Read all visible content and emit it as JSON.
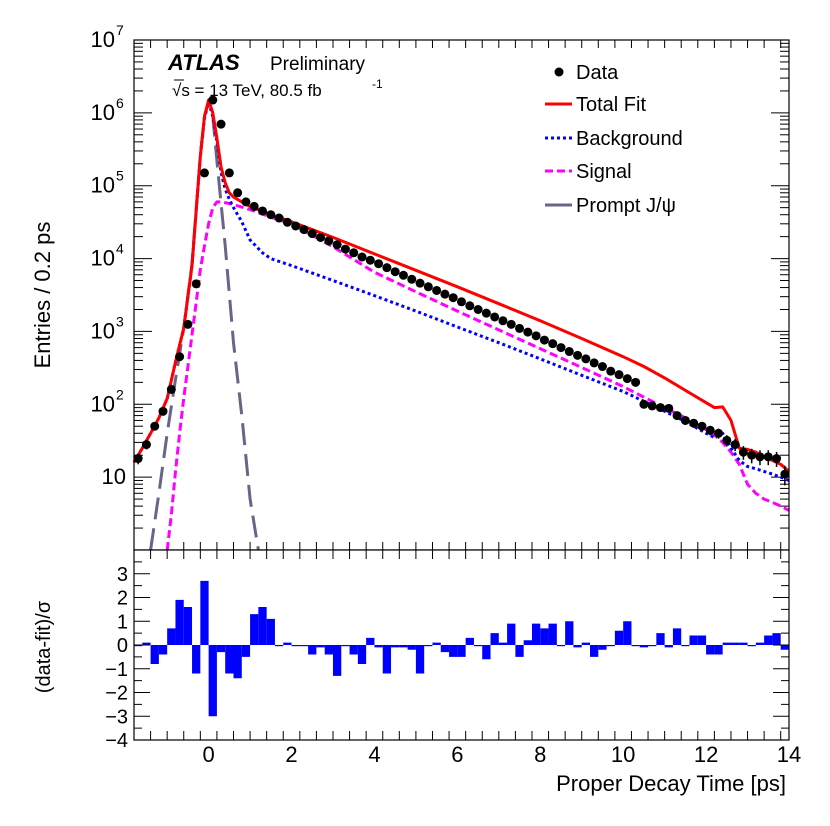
{
  "chart_data": [
    {
      "type": "line",
      "panel": "main",
      "ylabel": "Entries / 0.2 ps",
      "yscale": "log",
      "ylim": [
        1,
        10000000
      ],
      "xlim": [
        -1.8,
        14
      ],
      "y_tick_labels": [
        "10",
        "10^2",
        "10^3",
        "10^4",
        "10^5",
        "10^6",
        "10^7"
      ],
      "annotations": {
        "experiment": "ATLAS",
        "status": "Preliminary",
        "energy": "√s = 13 TeV, 80.5 fb",
        "lumi_exp": "-1"
      },
      "legend": [
        {
          "key": "data",
          "label": "Data"
        },
        {
          "key": "total",
          "label": "Total Fit"
        },
        {
          "key": "background",
          "label": "Background"
        },
        {
          "key": "signal",
          "label": "Signal"
        },
        {
          "key": "prompt",
          "label": "Prompt J/ψ"
        }
      ],
      "series": [
        {
          "name": "Data",
          "style": "points",
          "color": "#000000",
          "x": [
            -1.7,
            -1.5,
            -1.3,
            -1.1,
            -0.9,
            -0.7,
            -0.5,
            -0.3,
            -0.1,
            0.1,
            0.3,
            0.5,
            0.7,
            0.9,
            1.1,
            1.3,
            1.5,
            1.7,
            1.9,
            2.1,
            2.3,
            2.5,
            2.7,
            2.9,
            3.1,
            3.3,
            3.5,
            3.7,
            3.9,
            4.1,
            4.3,
            4.5,
            4.7,
            4.9,
            5.1,
            5.3,
            5.5,
            5.7,
            5.9,
            6.1,
            6.3,
            6.5,
            6.7,
            6.9,
            7.1,
            7.3,
            7.5,
            7.7,
            7.9,
            8.1,
            8.3,
            8.5,
            8.7,
            8.9,
            9.1,
            9.3,
            9.5,
            9.7,
            9.9,
            10.1,
            10.3,
            10.5,
            10.7,
            10.9,
            11.1,
            11.3,
            11.5,
            11.7,
            11.9,
            12.1,
            12.3,
            12.5,
            12.7,
            12.9,
            13.1,
            13.3,
            13.5,
            13.7,
            13.9
          ],
          "y": [
            18,
            28,
            50,
            80,
            160,
            450,
            1250,
            4500,
            150000,
            1500000,
            700000,
            150000,
            80000,
            60000,
            52000,
            45000,
            40000,
            36000,
            31500,
            28000,
            25000,
            22000,
            19500,
            17500,
            15500,
            13500,
            12000,
            10500,
            9500,
            8500,
            7500,
            6600,
            5900,
            5200,
            4600,
            4100,
            3650,
            3250,
            2900,
            2550,
            2250,
            2000,
            1780,
            1580,
            1400,
            1250,
            1100,
            980,
            870,
            760,
            680,
            600,
            530,
            470,
            420,
            370,
            330,
            285,
            255,
            225,
            200,
            100,
            95,
            90,
            88,
            70,
            60,
            55,
            50,
            44,
            40,
            32,
            28,
            22,
            20,
            19,
            19,
            18,
            11
          ],
          "err": [
            3,
            4,
            5,
            6,
            8,
            12,
            20,
            35,
            150,
            400,
            300,
            150,
            100,
            80,
            75,
            70,
            65,
            60,
            55,
            50,
            50,
            45,
            45,
            40,
            40,
            38,
            35,
            32,
            30,
            29,
            27,
            26,
            24,
            23,
            21,
            20,
            19,
            18,
            17,
            16,
            15,
            14,
            13,
            12.5,
            12,
            11,
            10.5,
            10,
            9.3,
            8.7,
            8.2,
            7.7,
            7.3,
            6.9,
            6.5,
            6.1,
            5.7,
            5.3,
            5.0,
            4.7,
            4.5,
            10,
            9.7,
            9.5,
            9.4,
            8.4,
            7.7,
            7.4,
            7.1,
            6.6,
            6.3,
            5.7,
            5.3,
            4.7,
            4.5,
            4.4,
            4.4,
            4.2,
            3.3
          ]
        },
        {
          "name": "Total Fit",
          "style": "solid",
          "color": "#ff0000",
          "x": [
            -1.8,
            -1.6,
            -1.4,
            -1.2,
            -1.0,
            -0.8,
            -0.6,
            -0.4,
            -0.2,
            -0.1,
            0.0,
            0.1,
            0.2,
            0.3,
            0.4,
            0.5,
            0.6,
            0.8,
            1.0,
            1.5,
            2,
            3,
            4,
            5,
            6,
            7,
            8,
            9,
            10,
            10.5,
            11,
            11.5,
            12,
            12.2,
            12.4,
            12.6,
            12.8,
            13.0,
            13.2,
            13.4,
            13.6,
            13.8,
            14.0
          ],
          "y": [
            16,
            25,
            40,
            65,
            120,
            380,
            1100,
            8000,
            250000,
            900000,
            1500000,
            1000000,
            450000,
            180000,
            110000,
            80000,
            70000,
            60000,
            52000,
            40000,
            32000,
            19500,
            11600,
            6900,
            4100,
            2400,
            1400,
            800,
            450,
            330,
            230,
            155,
            105,
            90,
            92,
            60,
            25,
            24,
            22,
            19,
            17,
            15,
            12
          ]
        },
        {
          "name": "Background",
          "style": "dot",
          "color": "#0000ff",
          "x": [
            -1.8,
            -1.6,
            -1.4,
            -1.2,
            -1.0,
            -0.8,
            -0.6,
            -0.4,
            -0.2,
            -0.1,
            0.0,
            0.1,
            0.2,
            0.3,
            0.4,
            0.5,
            0.6,
            0.8,
            1.0,
            1.3,
            1.5,
            2,
            3,
            4,
            5,
            6,
            7,
            8,
            9,
            10,
            10.5,
            11,
            11.5,
            12,
            12.2,
            12.4,
            12.6,
            12.8,
            13.0,
            13.2,
            13.4,
            13.6,
            13.8,
            14.0
          ],
          "y": [
            16,
            25,
            40,
            65,
            120,
            380,
            1100,
            8000,
            250000,
            850000,
            1400000,
            900000,
            400000,
            150000,
            90000,
            65000,
            50000,
            32000,
            18000,
            12000,
            10000,
            8000,
            5000,
            3100,
            1900,
            1150,
            700,
            420,
            250,
            150,
            110,
            80,
            58,
            40,
            35,
            40,
            25,
            17,
            14,
            13,
            12,
            11,
            10,
            9
          ]
        },
        {
          "name": "Signal",
          "style": "dash",
          "color": "#ff00ff",
          "x": [
            -1.0,
            -0.9,
            -0.8,
            -0.7,
            -0.6,
            -0.5,
            -0.4,
            -0.3,
            -0.2,
            -0.1,
            0.0,
            0.1,
            0.2,
            0.3,
            0.5,
            0.7,
            1.0,
            1.5,
            2,
            3,
            4,
            5,
            6,
            7,
            8,
            9,
            10,
            10.5,
            11,
            11.5,
            12,
            12.2,
            12.4,
            12.6,
            12.8,
            13.0,
            13.2,
            13.4,
            13.6,
            13.8,
            14.0
          ],
          "y": [
            1,
            3,
            12,
            40,
            120,
            330,
            900,
            2500,
            7000,
            15000,
            30000,
            50000,
            60000,
            60000,
            57000,
            53000,
            47000,
            37000,
            30000,
            14500,
            6500,
            3500,
            1900,
            1050,
            580,
            320,
            175,
            125,
            90,
            65,
            45,
            38,
            30,
            22,
            15,
            8,
            6,
            5,
            4.5,
            4,
            3.5
          ]
        },
        {
          "name": "Prompt J/ψ",
          "style": "longdash",
          "color": "#666688",
          "x": [
            -1.4,
            -1.2,
            -1.0,
            -0.8,
            -0.6,
            -0.4,
            -0.2,
            -0.1,
            0.0,
            0.1,
            0.2,
            0.4,
            0.6,
            0.8,
            1.0,
            1.2
          ],
          "y": [
            1,
            6,
            40,
            220,
            1100,
            8500,
            260000,
            900000,
            1400000,
            900000,
            220000,
            15000,
            700,
            70,
            5,
            1
          ]
        }
      ]
    },
    {
      "type": "bar",
      "panel": "ratio",
      "ylabel": "(data-fit)/σ",
      "xlabel": "Proper Decay Time [ps]",
      "xlim": [
        -1.8,
        14
      ],
      "ylim": [
        -4,
        4
      ],
      "x_ticks": [
        0,
        2,
        4,
        6,
        8,
        10,
        12,
        14
      ],
      "y_ticks": [
        -4,
        -3,
        -2,
        -1,
        0,
        1,
        2,
        3
      ],
      "color": "#0000ff",
      "bin_width": 0.2,
      "x": [
        -1.7,
        -1.5,
        -1.3,
        -1.1,
        -0.9,
        -0.7,
        -0.5,
        -0.3,
        -0.1,
        0.1,
        0.3,
        0.5,
        0.7,
        0.9,
        1.1,
        1.3,
        1.5,
        1.7,
        1.9,
        2.1,
        2.3,
        2.5,
        2.7,
        2.9,
        3.1,
        3.3,
        3.5,
        3.7,
        3.9,
        4.1,
        4.3,
        4.5,
        4.7,
        4.9,
        5.1,
        5.3,
        5.5,
        5.7,
        5.9,
        6.1,
        6.3,
        6.5,
        6.7,
        6.9,
        7.1,
        7.3,
        7.5,
        7.7,
        7.9,
        8.1,
        8.3,
        8.5,
        8.7,
        8.9,
        9.1,
        9.3,
        9.5,
        9.7,
        9.9,
        10.1,
        10.3,
        10.5,
        10.7,
        10.9,
        11.1,
        11.3,
        11.5,
        11.7,
        11.9,
        12.1,
        12.3,
        12.5,
        12.7,
        12.9,
        13.1,
        13.3,
        13.5,
        13.7,
        13.9
      ],
      "values": [
        0.0,
        0.1,
        -0.8,
        -0.4,
        0.7,
        1.9,
        1.6,
        -1.2,
        2.7,
        -3.0,
        -0.3,
        -1.2,
        -1.4,
        -0.5,
        1.3,
        1.6,
        1.1,
        0.0,
        0.1,
        0.0,
        0.0,
        -0.4,
        -0.1,
        -0.4,
        -1.3,
        0.0,
        -0.4,
        -0.8,
        0.3,
        -0.1,
        -1.2,
        -0.1,
        -0.1,
        -0.2,
        -1.2,
        0.0,
        0.1,
        -0.3,
        -0.5,
        -0.5,
        0.3,
        0.0,
        -0.6,
        0.5,
        0.1,
        0.9,
        -0.5,
        0.2,
        0.9,
        0.7,
        0.9,
        0.0,
        1.0,
        -0.1,
        0.1,
        -0.5,
        -0.2,
        0.0,
        0.6,
        1.0,
        0.0,
        -0.1,
        0.0,
        0.5,
        -0.1,
        0.7,
        0.0,
        0.4,
        0.4,
        -0.4,
        -0.4,
        0.1,
        0.1,
        0.1,
        0.0,
        0.1,
        0.4,
        0.5,
        -0.2
      ]
    }
  ]
}
